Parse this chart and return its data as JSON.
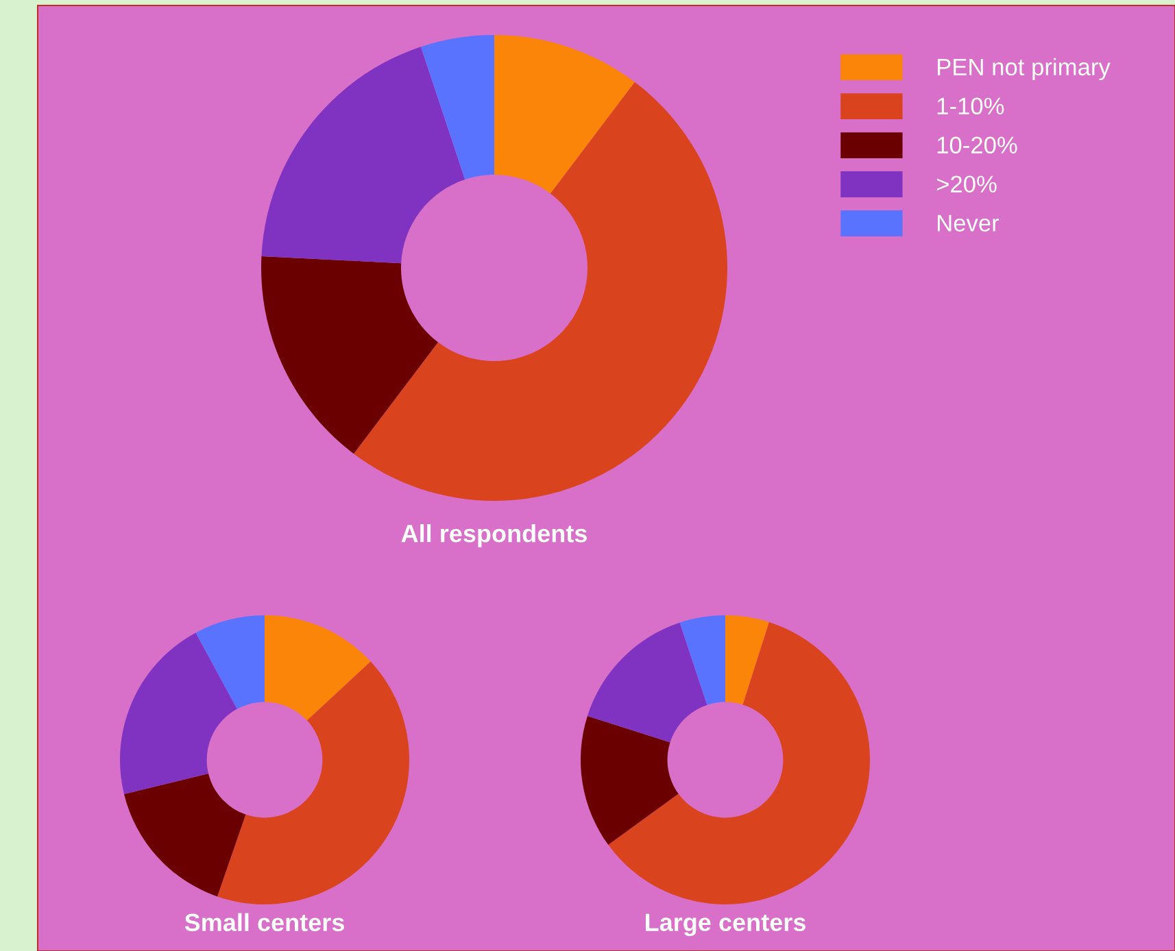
{
  "chart_data": [
    {
      "type": "donut",
      "title": "All respondents",
      "categories": [
        "PEN not primary",
        "1-10%",
        "10-20%",
        ">20%",
        "Never"
      ],
      "values": [
        10.3,
        50,
        15.5,
        19.1,
        5.1
      ],
      "colors": [
        "#fa8508",
        "#d9441f",
        "#6b0000",
        "#8033c0",
        "#5a73ff"
      ],
      "legend": "right"
    },
    {
      "type": "donut",
      "title": "Small centers",
      "categories": [
        null,
        null,
        null,
        null,
        null
      ],
      "values": [
        13.1,
        42.2,
        15.9,
        20.9,
        7.9
      ],
      "colors": [
        "#fa8508",
        "#d9441f",
        "#6b0000",
        "#8033c0",
        "#5a73ff"
      ]
    },
    {
      "type": "donut",
      "title": "Large centers",
      "categories": [
        null,
        null,
        null,
        null,
        null
      ],
      "values": [
        4.9,
        60.1,
        14.9,
        15.0,
        5.1
      ],
      "colors": [
        "#fa8508",
        "#d9441f",
        "#6b0000",
        "#8033c0",
        "#5a73ff"
      ]
    }
  ]
}
